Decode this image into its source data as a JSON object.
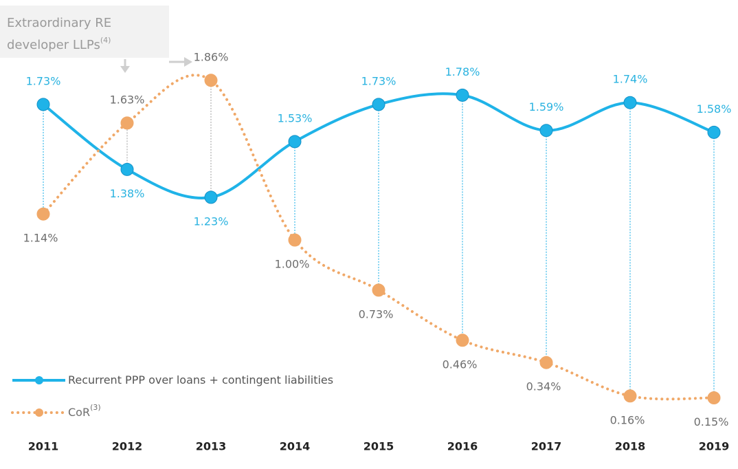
{
  "chart_data": {
    "type": "line",
    "categories": [
      "2011",
      "2012",
      "2013",
      "2014",
      "2015",
      "2016",
      "2017",
      "2018",
      "2019"
    ],
    "ylim": [
      0,
      2
    ],
    "series": [
      {
        "name": "Recurrent PPP over loans + contingent liabilities",
        "color": "#1fb3e8",
        "label_color": "#2bb3e0",
        "style": "solid",
        "values": [
          1.73,
          1.38,
          1.23,
          1.53,
          1.73,
          1.78,
          1.59,
          1.74,
          1.58
        ],
        "value_labels": [
          "1.73%",
          "1.38%",
          "1.23%",
          "1.53%",
          "1.73%",
          "1.78%",
          "1.59%",
          "1.74%",
          "1.58%"
        ]
      },
      {
        "name": "CoR",
        "superscript": "(3)",
        "color": "#f0a868",
        "label_color": "#6e6e6e",
        "style": "dotted",
        "values": [
          1.14,
          1.63,
          1.86,
          1.0,
          0.73,
          0.46,
          0.34,
          0.16,
          0.15
        ],
        "value_labels": [
          "1.14%",
          "1.63%",
          "1.86%",
          "1.00%",
          "0.73%",
          "0.46%",
          "0.34%",
          "0.16%",
          "0.15%"
        ]
      }
    ],
    "annotation": {
      "lines": [
        "Extraordinary RE",
        "developer LLPs"
      ],
      "superscript": "(4)"
    }
  }
}
